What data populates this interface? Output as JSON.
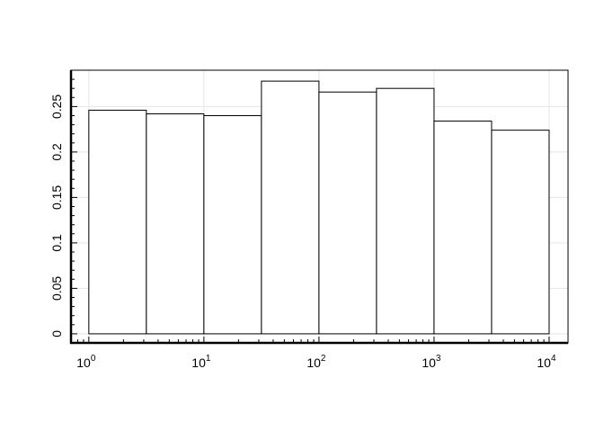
{
  "chart_data": {
    "type": "bar",
    "title": "",
    "xlabel": "",
    "ylabel": "",
    "x_scale": "log10",
    "xlim": [
      0.7,
      14600
    ],
    "ylim": [
      -0.01,
      0.29
    ],
    "grid": true,
    "bin_edges": [
      1,
      3.1623,
      10,
      31.623,
      100,
      316.23,
      1000,
      3162.3,
      10000
    ],
    "values": [
      0.246,
      0.242,
      0.24,
      0.278,
      0.266,
      0.27,
      0.234,
      0.224
    ],
    "x_ticks": [
      {
        "value": 1,
        "base": "10",
        "exp": "0"
      },
      {
        "value": 10,
        "base": "10",
        "exp": "1"
      },
      {
        "value": 100,
        "base": "10",
        "exp": "2"
      },
      {
        "value": 1000,
        "base": "10",
        "exp": "3"
      },
      {
        "value": 10000,
        "base": "10",
        "exp": "4"
      }
    ],
    "y_ticks": [
      {
        "value": 0,
        "label": "0"
      },
      {
        "value": 0.05,
        "label": "0.05"
      },
      {
        "value": 0.1,
        "label": "0.1"
      },
      {
        "value": 0.15,
        "label": "0.15"
      },
      {
        "value": 0.2,
        "label": "0.2"
      },
      {
        "value": 0.25,
        "label": "0.25"
      }
    ],
    "colors": {
      "bar_fill": "#ffffff",
      "bar_stroke": "#000000",
      "grid": "#e5e5e5"
    }
  }
}
